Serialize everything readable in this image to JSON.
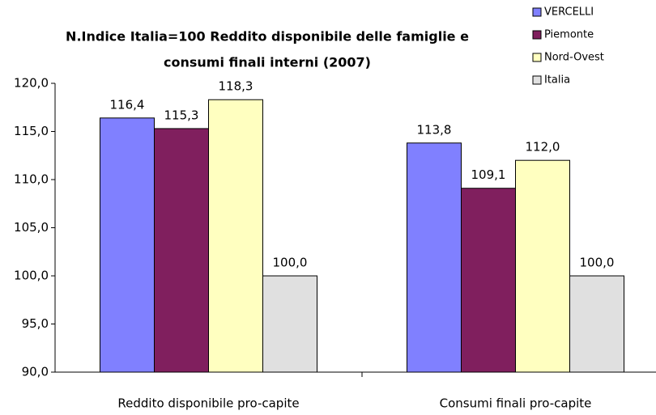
{
  "chart_data": {
    "type": "bar",
    "title": [
      "N.Indice Italia=100 Reddito disponibile delle famiglie e",
      "consumi finali interni (2007)"
    ],
    "categories": [
      "Reddito disponibile pro-capite",
      "Consumi finali pro-capite"
    ],
    "series": [
      {
        "name": "VERCELLI",
        "color": "#8080ff",
        "values": [
          116.4,
          113.8
        ],
        "value_labels": [
          "116,4",
          "113,8"
        ]
      },
      {
        "name": "Piemonte",
        "color": "#801f5e",
        "values": [
          115.3,
          109.1
        ],
        "value_labels": [
          "115,3",
          "109,1"
        ]
      },
      {
        "name": "Nord-Ovest",
        "color": "#ffffc0",
        "values": [
          118.3,
          112.0
        ],
        "value_labels": [
          "118,3",
          "112,0"
        ]
      },
      {
        "name": "Italia",
        "color": "#e0e0e0",
        "values": [
          100.0,
          100.0
        ],
        "value_labels": [
          "100,0",
          "100,0"
        ]
      }
    ],
    "ylim": [
      90,
      120
    ],
    "yticks": [
      {
        "value": 90,
        "label": "90,0"
      },
      {
        "value": 95,
        "label": "95,0"
      },
      {
        "value": 100,
        "label": "100,0"
      },
      {
        "value": 105,
        "label": "105,0"
      },
      {
        "value": 110,
        "label": "110,0"
      },
      {
        "value": 115,
        "label": "115,0"
      },
      {
        "value": 120,
        "label": "120,0"
      }
    ],
    "grid": false,
    "legend": "top-right"
  }
}
